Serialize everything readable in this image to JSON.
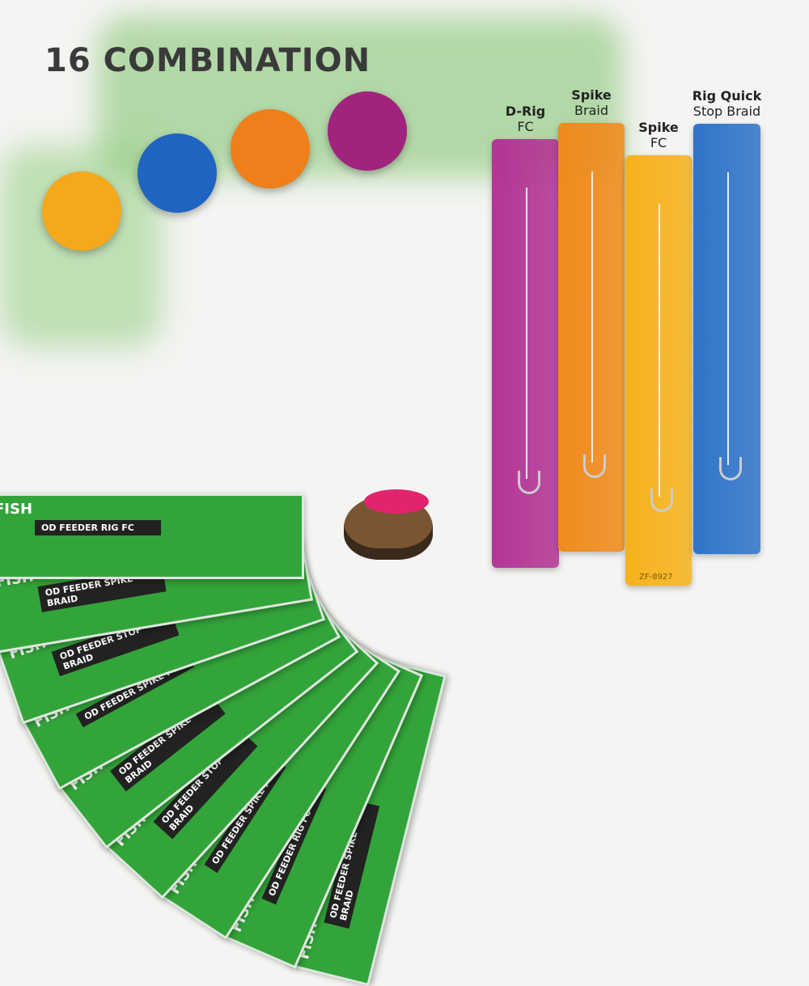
{
  "title": "16 COMBINATION",
  "packs": [
    {
      "brand": "FISH",
      "label": "OD FEEDER SPIKE BRAID"
    },
    {
      "brand": "FISH",
      "label": "OD FEEDER RIG FC"
    },
    {
      "brand": "FISH",
      "label": "OD FEEDER SPIKE FC"
    },
    {
      "brand": "FISH",
      "label": "OD FEEDER STOP BRAID"
    },
    {
      "brand": "FISH",
      "label": "OD FEEDER SPIKE BRAID"
    },
    {
      "brand": "FISH",
      "label": "OD FEEDER SPIKE FC"
    },
    {
      "brand": "FISH",
      "label": "OD FEEDER STOP BRAID"
    },
    {
      "brand": "FISH",
      "label": "OD FEEDER SPIKE BRAID"
    },
    {
      "brand": "FISH",
      "label": "OD FEEDER RIG FC"
    }
  ],
  "rigs": [
    {
      "name": "D-Rig",
      "sub": "FC",
      "color": "#b33494"
    },
    {
      "name": "Spike",
      "sub": "Braid",
      "color": "#f08a1c"
    },
    {
      "name": "Spike",
      "sub": "FC",
      "color": "#f6b21c"
    },
    {
      "name": "Rig Quick",
      "sub": "Stop Braid",
      "color": "#2f74c8"
    }
  ],
  "code": "ZF-8927",
  "circle_colors": [
    "#f4a81c",
    "#1f64c0",
    "#ef7f1a",
    "#a0237e"
  ]
}
